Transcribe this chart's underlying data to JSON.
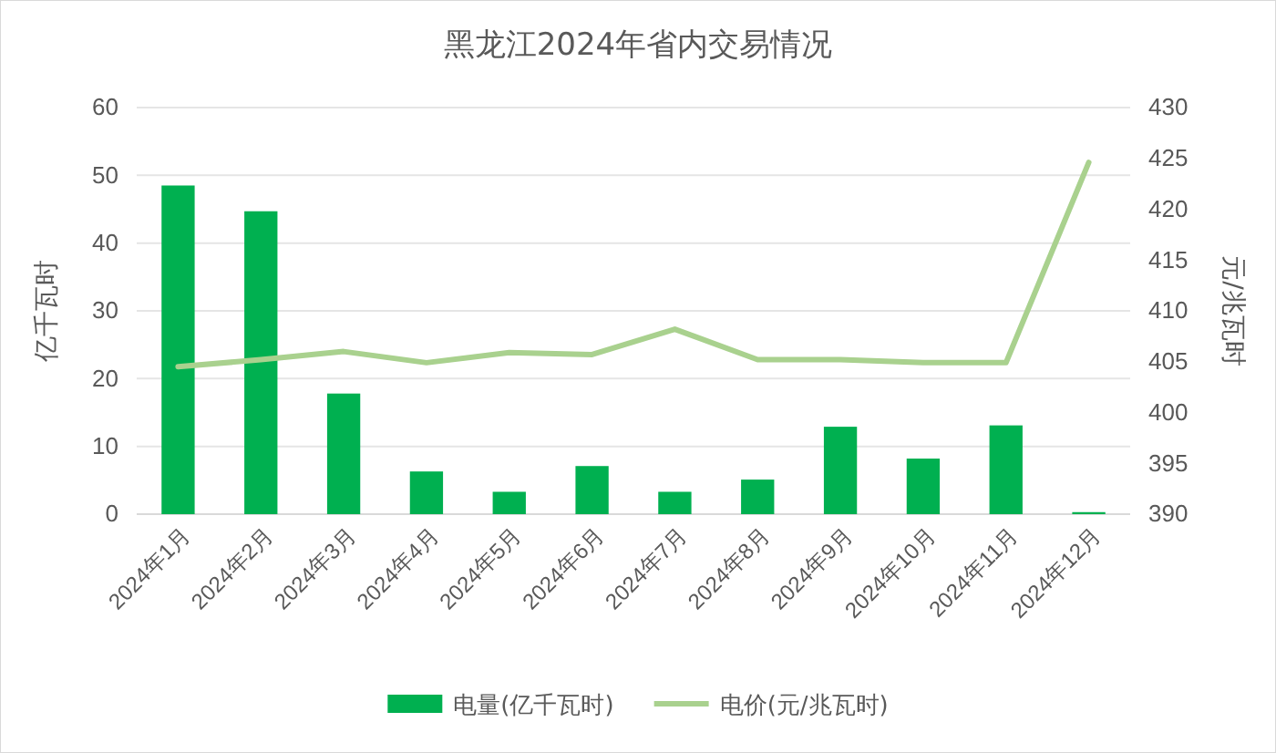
{
  "chart_data": {
    "type": "bar",
    "title": "黑龙江2024年省内交易情况",
    "ylabel": "亿千瓦时",
    "y2label": "元/兆瓦时",
    "categories": [
      "2024年1月",
      "2024年2月",
      "2024年3月",
      "2024年4月",
      "2024年5月",
      "2024年6月",
      "2024年7月",
      "2024年8月",
      "2024年9月",
      "2024年10月",
      "2024年11月",
      "2024年12月"
    ],
    "series": [
      {
        "name": "电量(亿千瓦时)",
        "color": "#00b050",
        "values": [
          48.5,
          44.7,
          17.8,
          6.3,
          3.3,
          7.1,
          3.3,
          5.1,
          12.9,
          8.2,
          13.1,
          0.3
        ]
      },
      {
        "name": "电价(元/兆瓦时)",
        "type": "line",
        "axis": "y2",
        "color": "#a9d18e",
        "values": [
          404.5,
          405.2,
          406.0,
          404.9,
          405.9,
          405.7,
          408.2,
          405.2,
          405.2,
          404.9,
          404.9,
          424.6
        ]
      }
    ],
    "ylim": [
      0,
      60
    ],
    "yticks": [
      0,
      10,
      20,
      30,
      40,
      50,
      60
    ],
    "y2lim": [
      390,
      430
    ],
    "y2ticks": [
      390,
      395,
      400,
      405,
      410,
      415,
      420,
      425,
      430
    ],
    "grid": "y",
    "legend": "bottom",
    "marker": "none",
    "line_style": "solid"
  }
}
